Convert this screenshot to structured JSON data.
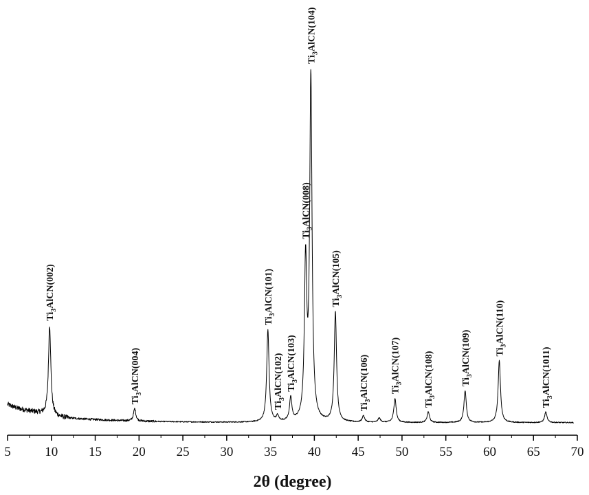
{
  "chart_data": {
    "type": "line",
    "title": "",
    "xlabel": "2θ (degree)",
    "ylabel": "",
    "xlim": [
      5,
      70
    ],
    "ylim": [
      0,
      100
    ],
    "x_ticks": [
      5,
      10,
      15,
      20,
      25,
      30,
      35,
      40,
      45,
      50,
      55,
      60,
      65,
      70
    ],
    "grid": false,
    "legend": "none",
    "colors": {
      "line": "#000000",
      "text": "#111111"
    },
    "background_baseline": [
      [
        5.0,
        5.2
      ],
      [
        6.0,
        4.2
      ],
      [
        7.0,
        3.6
      ],
      [
        8.0,
        3.1
      ],
      [
        9.0,
        2.6
      ],
      [
        10.0,
        2.0
      ],
      [
        11.0,
        1.6
      ],
      [
        12.0,
        1.3
      ],
      [
        14.0,
        1.0
      ],
      [
        16.0,
        0.8
      ],
      [
        18.0,
        0.6
      ],
      [
        20.0,
        0.45
      ],
      [
        25.0,
        0.25
      ],
      [
        30.0,
        0.15
      ],
      [
        35.0,
        0.1
      ],
      [
        40.0,
        0.1
      ],
      [
        50.0,
        0.05
      ],
      [
        70.0,
        0.05
      ]
    ],
    "peaks": [
      {
        "two_theta": 9.8,
        "intensity": 25.5,
        "label": "Ti3AlCN(002)"
      },
      {
        "two_theta": 19.5,
        "intensity": 3.5,
        "label": "Ti3AlCN(004)"
      },
      {
        "two_theta": 34.7,
        "intensity": 26.0,
        "label": "Ti3AlCN(101)"
      },
      {
        "two_theta": 35.8,
        "intensity": 1.5,
        "label": "Ti3AlCN(102)"
      },
      {
        "two_theta": 37.3,
        "intensity": 6.5,
        "label": "Ti3AlCN(103)"
      },
      {
        "two_theta": 39.0,
        "intensity": 44.0,
        "label": "Ti3AlCN(008)"
      },
      {
        "two_theta": 39.6,
        "intensity": 97.0,
        "label": "Ti3AlCN(104)"
      },
      {
        "two_theta": 42.4,
        "intensity": 31.0,
        "label": "Ti3AlCN(105)"
      },
      {
        "two_theta": 45.6,
        "intensity": 1.8,
        "label": "Ti3AlCN(106)"
      },
      {
        "two_theta": 47.4,
        "intensity": 1.2,
        "label": ""
      },
      {
        "two_theta": 49.2,
        "intensity": 6.8,
        "label": "Ti3AlCN(107)"
      },
      {
        "two_theta": 53.0,
        "intensity": 3.0,
        "label": "Ti3AlCN(108)"
      },
      {
        "two_theta": 57.2,
        "intensity": 9.0,
        "label": "Ti3AlCN(109)"
      },
      {
        "two_theta": 61.1,
        "intensity": 17.5,
        "label": "Ti3AlCN(110)"
      },
      {
        "two_theta": 66.4,
        "intensity": 3.0,
        "label": "Ti3AlCN(1011)"
      }
    ]
  }
}
